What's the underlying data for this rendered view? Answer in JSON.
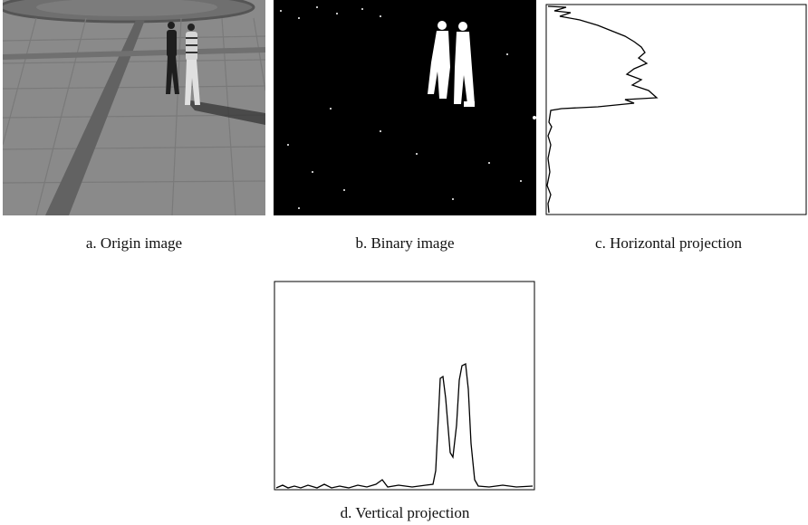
{
  "figure": {
    "panels": [
      {
        "caption": "a. Origin image"
      },
      {
        "caption": "b. Binary image"
      },
      {
        "caption": "c. Horizontal projection"
      },
      {
        "caption": "d. Vertical projection"
      }
    ]
  }
}
